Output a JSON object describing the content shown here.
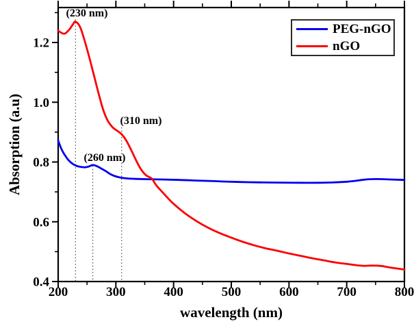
{
  "figure": {
    "x_axis_title": "wavelength (nm)",
    "y_axis_title": "Absorption (a.u)"
  },
  "legend": {
    "entries": [
      {
        "label": "PEG-nGO",
        "color": "#0000f0"
      },
      {
        "label": "nGO",
        "color": "#fb0000"
      }
    ]
  },
  "chart_data": {
    "type": "line",
    "title": "",
    "xlabel": "wavelength (nm)",
    "ylabel": "Absorption (a.u)",
    "xlim": [
      200,
      800
    ],
    "ylim": [
      0.4,
      1.317
    ],
    "x_ticks": [
      "200",
      "300",
      "400",
      "500",
      "600",
      "700",
      "800"
    ],
    "x_tick_values": [
      200,
      300,
      400,
      500,
      600,
      700,
      800
    ],
    "x_minor_ticks": [
      250,
      350,
      450,
      550,
      650,
      750
    ],
    "y_ticks": [
      "0.4",
      "0.6",
      "0.8",
      "1.0",
      "1.2"
    ],
    "y_tick_values": [
      0.4,
      0.6,
      0.8,
      1.0,
      1.2
    ],
    "y_minor_ticks": [
      0.5,
      0.7,
      0.9,
      1.1,
      1.3
    ],
    "grid": false,
    "legend_position": "top-right",
    "series": [
      {
        "name": "PEG-nGO",
        "color": "#0000f0",
        "points": [
          [
            200,
            0.872
          ],
          [
            206,
            0.842
          ],
          [
            212,
            0.822
          ],
          [
            218,
            0.806
          ],
          [
            225,
            0.794
          ],
          [
            232,
            0.787
          ],
          [
            240,
            0.7835
          ],
          [
            247,
            0.7825
          ],
          [
            253,
            0.785
          ],
          [
            260,
            0.79
          ],
          [
            267,
            0.786
          ],
          [
            274,
            0.779
          ],
          [
            282,
            0.77
          ],
          [
            290,
            0.76
          ],
          [
            298,
            0.753
          ],
          [
            308,
            0.748
          ],
          [
            320,
            0.745
          ],
          [
            335,
            0.7435
          ],
          [
            355,
            0.7425
          ],
          [
            380,
            0.7415
          ],
          [
            410,
            0.74
          ],
          [
            440,
            0.738
          ],
          [
            470,
            0.736
          ],
          [
            500,
            0.734
          ],
          [
            530,
            0.7325
          ],
          [
            560,
            0.7315
          ],
          [
            590,
            0.731
          ],
          [
            620,
            0.7305
          ],
          [
            650,
            0.7305
          ],
          [
            675,
            0.7315
          ],
          [
            700,
            0.734
          ],
          [
            715,
            0.737
          ],
          [
            730,
            0.741
          ],
          [
            745,
            0.7428
          ],
          [
            760,
            0.7428
          ],
          [
            775,
            0.7415
          ],
          [
            800,
            0.74
          ]
        ]
      },
      {
        "name": "nGO",
        "color": "#fb0000",
        "points": [
          [
            200,
            1.24
          ],
          [
            206,
            1.232
          ],
          [
            212,
            1.23
          ],
          [
            220,
            1.245
          ],
          [
            226,
            1.262
          ],
          [
            230,
            1.27
          ],
          [
            238,
            1.252
          ],
          [
            246,
            1.205
          ],
          [
            254,
            1.15
          ],
          [
            262,
            1.09
          ],
          [
            270,
            1.03
          ],
          [
            278,
            0.975
          ],
          [
            286,
            0.938
          ],
          [
            295,
            0.915
          ],
          [
            302,
            0.905
          ],
          [
            310,
            0.893
          ],
          [
            318,
            0.872
          ],
          [
            326,
            0.842
          ],
          [
            334,
            0.81
          ],
          [
            342,
            0.78
          ],
          [
            352,
            0.756
          ],
          [
            362,
            0.745
          ],
          [
            370,
            0.722
          ],
          [
            385,
            0.69
          ],
          [
            400,
            0.66
          ],
          [
            420,
            0.628
          ],
          [
            440,
            0.602
          ],
          [
            460,
            0.58
          ],
          [
            480,
            0.562
          ],
          [
            500,
            0.547
          ],
          [
            520,
            0.533
          ],
          [
            540,
            0.521
          ],
          [
            560,
            0.511
          ],
          [
            580,
            0.503
          ],
          [
            600,
            0.494
          ],
          [
            620,
            0.486
          ],
          [
            640,
            0.478
          ],
          [
            660,
            0.471
          ],
          [
            680,
            0.464
          ],
          [
            700,
            0.459
          ],
          [
            715,
            0.455
          ],
          [
            730,
            0.4525
          ],
          [
            745,
            0.4535
          ],
          [
            760,
            0.452
          ],
          [
            775,
            0.447
          ],
          [
            800,
            0.44
          ]
        ]
      }
    ],
    "annotations": [
      {
        "label": "(230 nm)",
        "x_nm": 230,
        "series": "nGO",
        "value_at_peak": 1.27
      },
      {
        "label": "(260 nm)",
        "x_nm": 260,
        "series": "PEG-nGO",
        "value_at_peak": 0.79
      },
      {
        "label": "(310 nm)",
        "x_nm": 310,
        "series": "nGO",
        "value_at_peak": 0.9
      }
    ]
  }
}
